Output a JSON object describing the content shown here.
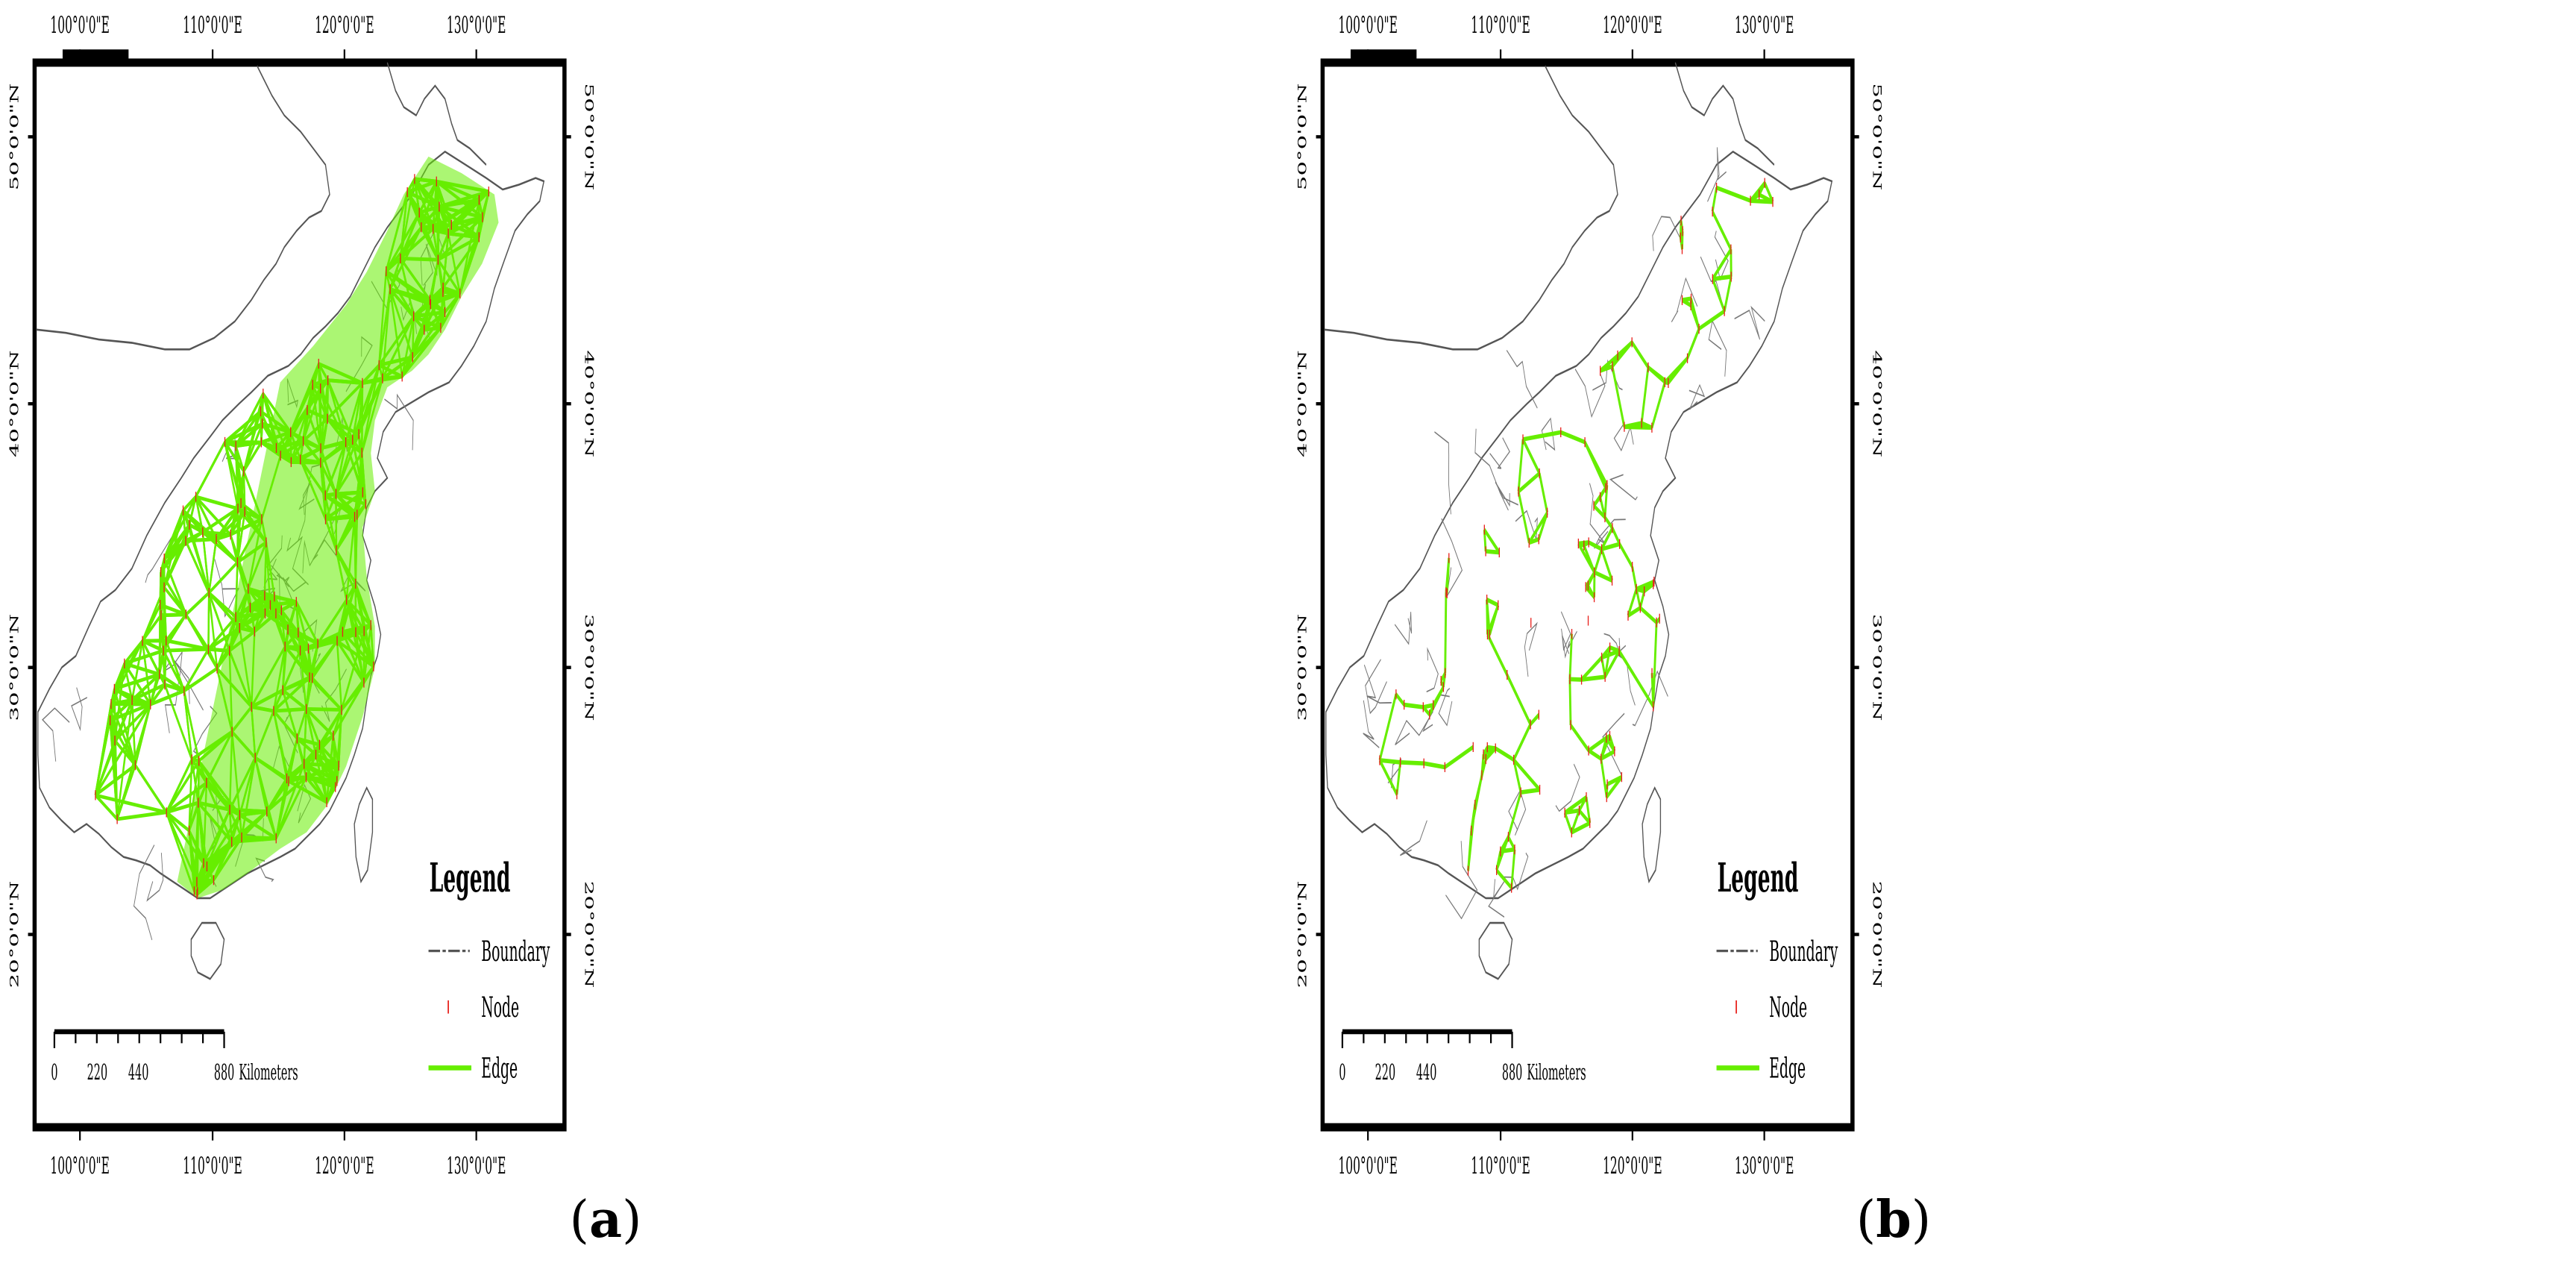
{
  "panels": [
    {
      "id": "a",
      "caption_open": "(",
      "caption_letter": "a",
      "caption_close": ")",
      "edge_style": "dense"
    },
    {
      "id": "b",
      "caption_open": "(",
      "caption_letter": "b",
      "caption_close": ")",
      "edge_style": "sparse"
    }
  ],
  "axes": {
    "lon_labels": [
      "100°0'0\"E",
      "110°0'0\"E",
      "120°0'0\"E",
      "130°0'0\"E"
    ],
    "lat_labels": [
      "50°0'0\"N",
      "40°0'0\"N",
      "30°0'0\"N",
      "20°0'0\"N"
    ]
  },
  "legend": {
    "title": "Legend",
    "items": [
      {
        "symbol": "boundary",
        "label": "Boundary"
      },
      {
        "symbol": "node",
        "label": "Node"
      },
      {
        "symbol": "edge",
        "label": "Edge"
      }
    ]
  },
  "scale_bar": {
    "ticks": [
      "0",
      "220",
      "440",
      "880"
    ],
    "unit": "Kilometers"
  },
  "colors": {
    "edge": "#66ee00",
    "node": "#e8211c",
    "boundary": "#555555",
    "frame": "#000000"
  }
}
